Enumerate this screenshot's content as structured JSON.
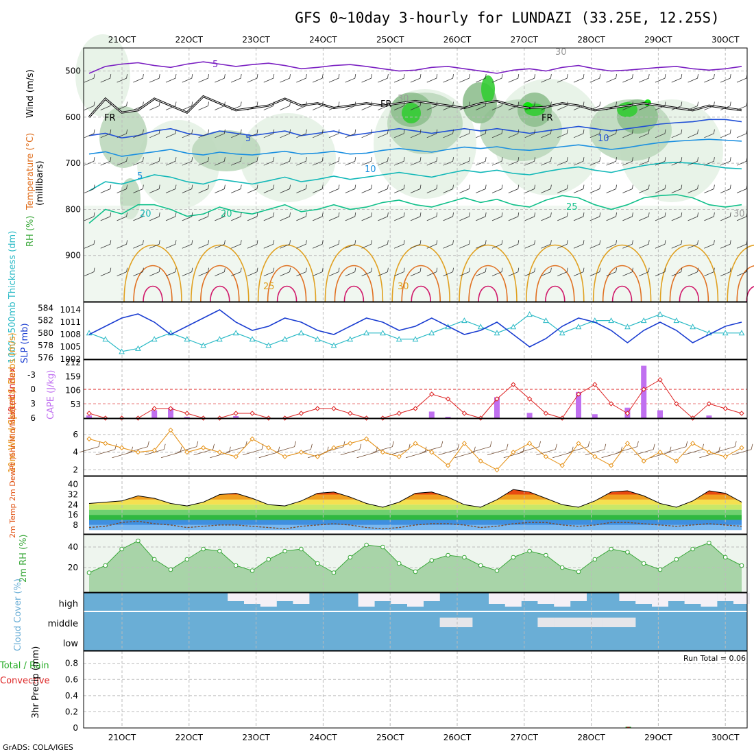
{
  "title": "GFS 0~10day 3-hourly for LUNDAZI (33.25E, 12.25S)",
  "credit": "GrADS: COLA/IGES",
  "run_total": "Run Total = 0.06",
  "colors": {
    "rh_fill": [
      "#e6f2e6",
      "#bcd8bc",
      "#8fbf8f",
      "#33cc33",
      "#00e600"
    ],
    "wind500": "#7a1fc2",
    "freeze": "#000000",
    "t5": "#1f4fd6",
    "t10": "#1a8fe0",
    "t15": "#12b8b8",
    "t20": "#10c08a",
    "t25": "#e0a020",
    "t30": "#e07020",
    "t35": "#d0186a",
    "slp": "#1a3dd1",
    "thickness": "#2bbac6",
    "cape": "#c070f0",
    "lifted": "#dd2222",
    "wind10": "#e6951e",
    "barb": "#704a30",
    "temp_hot": "#e05010",
    "rh2m": "#3aa83a",
    "cloud": "#6aaed6",
    "precip_total": "#22aa22",
    "precip_conv": "#dd2222"
  },
  "chart_data": [
    {
      "id": "upper-air",
      "type": "contour",
      "title": "GFS 0~10day 3-hourly for LUNDAZI (33.25E, 12.25S)",
      "x_ticks": [
        "21OCT",
        "22OCT",
        "23OCT",
        "24OCT",
        "25OCT",
        "26OCT",
        "27OCT",
        "28OCT",
        "29OCT",
        "30OCT"
      ],
      "ylabel_parts": [
        "RH (%)",
        "Temperature (°C)",
        "Wind (m/s)"
      ],
      "ylabel_unit": "(millibars)",
      "y_ticks": [
        "500",
        "600",
        "700",
        "800",
        "900"
      ],
      "ylim": [
        1000,
        450
      ],
      "contour_labels": [
        "5",
        "FR",
        "FR",
        "FR",
        "5",
        "10",
        "10",
        "5",
        "20",
        "20",
        "25",
        "25",
        "30",
        "30",
        "30",
        "30"
      ],
      "series": [
        {
          "level_label": "wind 5 m/s",
          "values": [
            505,
            490,
            485,
            482,
            488,
            492,
            485,
            480,
            485,
            490,
            486,
            483,
            488,
            495,
            492,
            488,
            486,
            490,
            495,
            500,
            498,
            492,
            490,
            495,
            500,
            505,
            498,
            495,
            500,
            492,
            488,
            495,
            500,
            498,
            495,
            492,
            490,
            495,
            498,
            495,
            490
          ]
        },
        {
          "level_label": "freezing level",
          "values": [
            600,
            560,
            590,
            585,
            560,
            575,
            590,
            555,
            570,
            585,
            580,
            575,
            560,
            575,
            570,
            580,
            575,
            570,
            575,
            570,
            565,
            570,
            575,
            580,
            570,
            565,
            575,
            580,
            578,
            570,
            575,
            585,
            580,
            575,
            570,
            575,
            580,
            585,
            575,
            580,
            585
          ]
        },
        {
          "level_label": "5",
          "values": [
            640,
            635,
            645,
            640,
            630,
            625,
            635,
            640,
            630,
            635,
            640,
            635,
            630,
            640,
            635,
            630,
            640,
            635,
            630,
            625,
            630,
            635,
            630,
            625,
            630,
            625,
            630,
            635,
            630,
            625,
            620,
            625,
            630,
            625,
            620,
            615,
            612,
            610,
            605,
            605,
            610
          ]
        },
        {
          "level_label": "10",
          "values": [
            680,
            675,
            685,
            680,
            675,
            670,
            678,
            682,
            676,
            680,
            682,
            678,
            674,
            680,
            678,
            674,
            680,
            678,
            672,
            668,
            672,
            676,
            670,
            665,
            668,
            664,
            670,
            672,
            668,
            664,
            660,
            665,
            670,
            666,
            660,
            655,
            652,
            650,
            648,
            650,
            652
          ]
        },
        {
          "level_label": "15",
          "values": [
            760,
            740,
            745,
            735,
            725,
            730,
            740,
            745,
            735,
            740,
            745,
            738,
            730,
            740,
            735,
            728,
            735,
            730,
            725,
            720,
            725,
            730,
            722,
            715,
            720,
            715,
            722,
            725,
            718,
            712,
            708,
            715,
            720,
            712,
            705,
            700,
            698,
            700,
            705,
            710,
            712
          ]
        },
        {
          "level_label": "20",
          "values": [
            830,
            800,
            810,
            790,
            790,
            800,
            815,
            810,
            795,
            805,
            810,
            800,
            790,
            805,
            800,
            790,
            800,
            795,
            785,
            780,
            790,
            795,
            785,
            775,
            785,
            778,
            790,
            795,
            780,
            770,
            775,
            790,
            800,
            790,
            775,
            770,
            768,
            775,
            790,
            795,
            790
          ]
        }
      ]
    },
    {
      "id": "slp-thickness",
      "type": "line",
      "ylabel_left": "1000~500mb Thickness (dm)",
      "ylabel_right": "SLP (mb)",
      "y_ticks_left": [
        "584",
        "582",
        "580",
        "578",
        "576"
      ],
      "y_ticks_right": [
        "1014",
        "1011",
        "1008",
        "1005",
        "1002"
      ],
      "series": [
        {
          "name": "SLP",
          "values": [
            1008,
            1010,
            1012,
            1013,
            1011,
            1008,
            1010,
            1012,
            1014,
            1011,
            1009,
            1010,
            1012,
            1011,
            1009,
            1008,
            1010,
            1012,
            1011,
            1009,
            1010,
            1012,
            1010,
            1008,
            1009,
            1011,
            1008,
            1005,
            1007,
            1010,
            1012,
            1011,
            1009,
            1006,
            1009,
            1011,
            1009,
            1006,
            1008,
            1010,
            1011
          ]
        },
        {
          "name": "Thickness",
          "values": [
            580,
            579,
            577,
            577.5,
            579,
            580,
            579,
            578,
            579,
            580,
            579,
            578,
            579,
            580,
            579,
            578,
            579,
            580,
            580,
            579,
            579,
            580,
            581,
            582,
            581,
            580,
            581,
            583,
            582,
            580,
            581,
            582,
            582,
            581,
            582,
            583,
            582,
            581,
            580,
            580,
            580
          ]
        }
      ]
    },
    {
      "id": "cape-li",
      "type": "bar",
      "ylabel_left": "Lifted Index",
      "ylabel_right": "CAPE (J/kg)",
      "y_ticks_left": [
        "-3",
        "0",
        "3",
        "6"
      ],
      "y_ticks_right": [
        "212",
        "159",
        "106",
        "53"
      ],
      "series": [
        {
          "name": "Lifted Index",
          "values": [
            5,
            6,
            6,
            6,
            4,
            4,
            5,
            6,
            6,
            5,
            5,
            6,
            6,
            5,
            4,
            4,
            5,
            6,
            6,
            5,
            4,
            1,
            2,
            5,
            6,
            2,
            -1,
            2,
            5,
            6,
            1,
            -1,
            3,
            5,
            0,
            -2,
            3,
            6,
            3,
            4,
            5
          ]
        },
        {
          "name": "CAPE",
          "values": [
            10,
            0,
            0,
            0,
            30,
            40,
            5,
            0,
            0,
            8,
            0,
            0,
            0,
            0,
            0,
            0,
            0,
            0,
            0,
            0,
            0,
            25,
            5,
            0,
            0,
            80,
            0,
            20,
            0,
            0,
            100,
            15,
            0,
            40,
            200,
            30,
            0,
            0,
            10,
            0,
            0
          ]
        }
      ]
    },
    {
      "id": "wind10m",
      "type": "line",
      "ylabel": "10m Wind Speed & Barbs (m/s)",
      "y_ticks": [
        "6",
        "4",
        "2"
      ],
      "series": [
        {
          "name": "10m Wind",
          "values": [
            5.5,
            5,
            4.5,
            4,
            4.2,
            6.5,
            4,
            4.5,
            4,
            3.5,
            5.5,
            4.5,
            3.5,
            4,
            3.5,
            4.5,
            5,
            5.5,
            4,
            3.5,
            5,
            4,
            2.5,
            5,
            3,
            2,
            4,
            5,
            3.5,
            2.5,
            5,
            3.5,
            2.5,
            5,
            3,
            4,
            3,
            5,
            4,
            3.5,
            4.5
          ]
        }
      ]
    },
    {
      "id": "temp2m",
      "type": "area",
      "ylabel": "2m Temp 2m DewPt (6hr Min/Max) (°C)",
      "y_ticks": [
        "40",
        "32",
        "24",
        "16",
        "8"
      ],
      "series": [
        {
          "name": "2m Temp",
          "values": [
            25,
            26,
            27,
            31,
            29,
            25,
            23,
            26,
            32,
            33,
            29,
            24,
            23,
            27,
            33,
            34,
            30,
            25,
            22,
            26,
            33,
            34,
            30,
            24,
            22,
            28,
            36,
            34,
            29,
            24,
            22,
            27,
            34,
            35,
            31,
            25,
            22,
            27,
            35,
            33,
            26
          ]
        },
        {
          "name": "2m DewPt",
          "values": [
            6,
            7,
            10,
            11,
            9,
            8,
            6,
            7,
            8,
            8,
            7,
            6,
            5,
            7,
            8,
            9,
            8,
            6,
            5,
            6,
            8,
            9,
            9,
            8,
            6,
            7,
            9,
            10,
            10,
            8,
            7,
            8,
            10,
            10,
            9,
            8,
            7,
            8,
            9,
            8,
            7
          ]
        }
      ]
    },
    {
      "id": "rh2m",
      "type": "area",
      "ylabel": "2m RH (%)",
      "y_ticks": [
        "40",
        "20"
      ],
      "series": [
        {
          "name": "2m RH",
          "values": [
            15,
            22,
            38,
            46,
            28,
            18,
            28,
            38,
            36,
            22,
            17,
            28,
            36,
            38,
            24,
            15,
            30,
            42,
            40,
            24,
            16,
            27,
            32,
            30,
            22,
            17,
            30,
            36,
            32,
            20,
            16,
            28,
            38,
            35,
            24,
            18,
            28,
            38,
            44,
            30,
            22
          ]
        }
      ]
    },
    {
      "id": "cloud",
      "type": "area",
      "ylabel": "Cloud Cover (%)",
      "levels": [
        "high",
        "middle",
        "low"
      ]
    },
    {
      "id": "precip",
      "type": "bar",
      "ylabel_left": "Total / Rain",
      "ylabel_left2": "Convective",
      "ylabel_right": "3hr Precip (mm)",
      "y_ticks": [
        "0.8",
        "0.6",
        "0.4",
        "0.2",
        "0"
      ],
      "series": [
        {
          "name": "Total",
          "values": [
            0,
            0,
            0,
            0,
            0,
            0,
            0,
            0,
            0,
            0,
            0,
            0,
            0,
            0,
            0,
            0,
            0,
            0,
            0,
            0,
            0,
            0,
            0,
            0,
            0,
            0,
            0,
            0,
            0,
            0,
            0,
            0,
            0,
            0,
            0,
            0.06,
            0,
            0,
            0,
            0,
            0
          ]
        }
      ]
    }
  ]
}
